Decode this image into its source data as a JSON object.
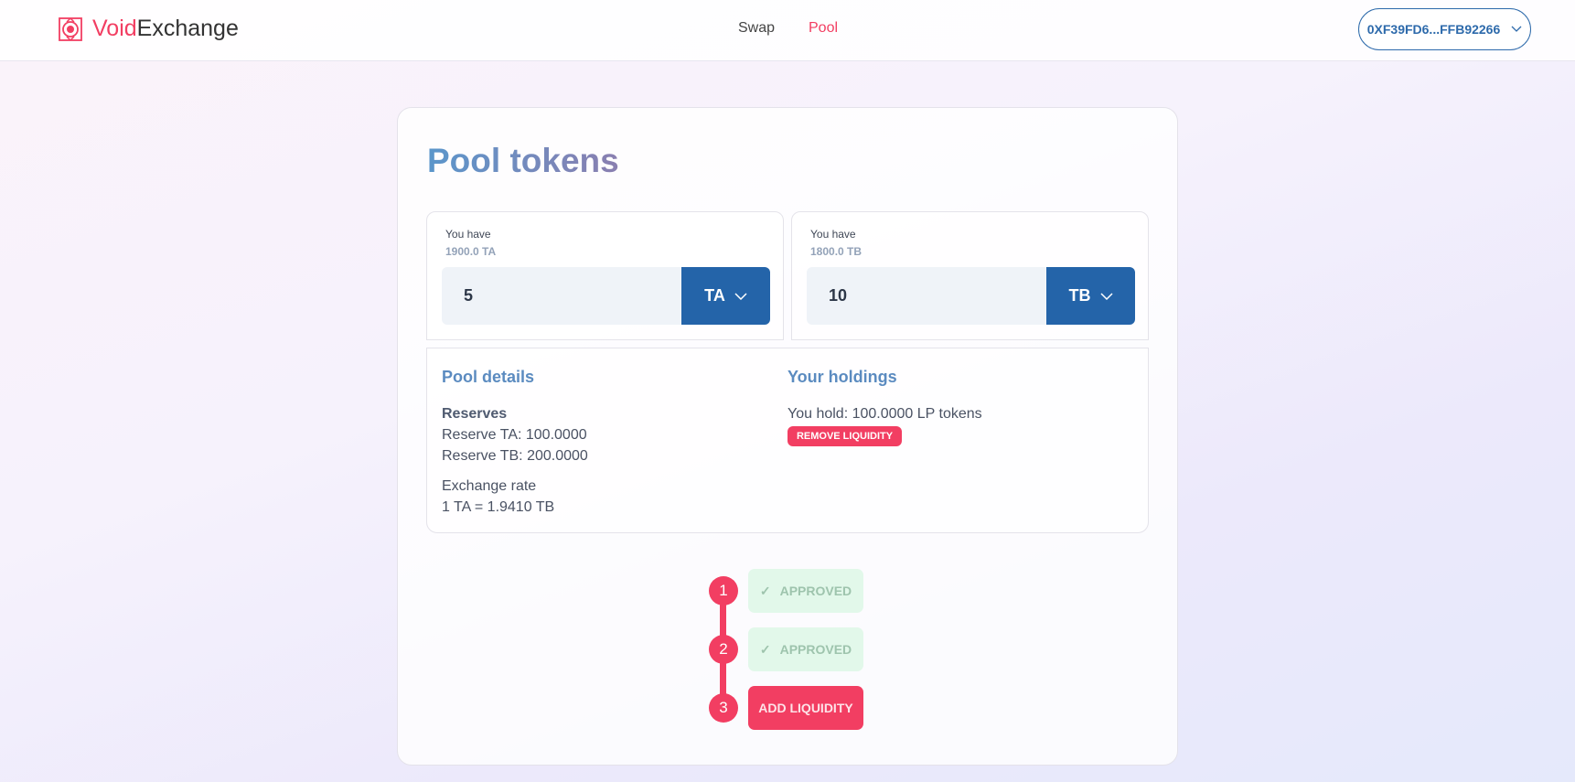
{
  "header": {
    "brand_accent": "Void",
    "brand_rest": "Exchange",
    "nav": [
      {
        "label": "Swap",
        "active": false
      },
      {
        "label": "Pool",
        "active": true
      }
    ],
    "wallet": "0XF39FD6...FFB92266"
  },
  "colors": {
    "accent": "#f23e62",
    "primary": "#2464a9"
  },
  "card": {
    "title": "Pool tokens",
    "token_a": {
      "have_label": "You have",
      "balance": "1900.0 TA",
      "amount": "5",
      "symbol": "TA"
    },
    "token_b": {
      "have_label": "You have",
      "balance": "1800.0 TB",
      "amount": "10",
      "symbol": "TB"
    },
    "details": {
      "title": "Pool details",
      "reserves_label": "Reserves",
      "reserve_a": "Reserve TA: 100.0000",
      "reserve_b": "Reserve TB: 200.0000",
      "rate_label": "Exchange rate",
      "rate": "1 TA = 1.9410 TB"
    },
    "holdings": {
      "title": "Your holdings",
      "hold": "You hold: 100.0000 LP tokens",
      "remove": "REMOVE LIQUIDITY"
    },
    "steps": [
      {
        "num": "1",
        "label": "APPROVED",
        "done": true
      },
      {
        "num": "2",
        "label": "APPROVED",
        "done": true
      },
      {
        "num": "3",
        "label": "ADD LIQUIDITY",
        "done": false
      }
    ]
  }
}
